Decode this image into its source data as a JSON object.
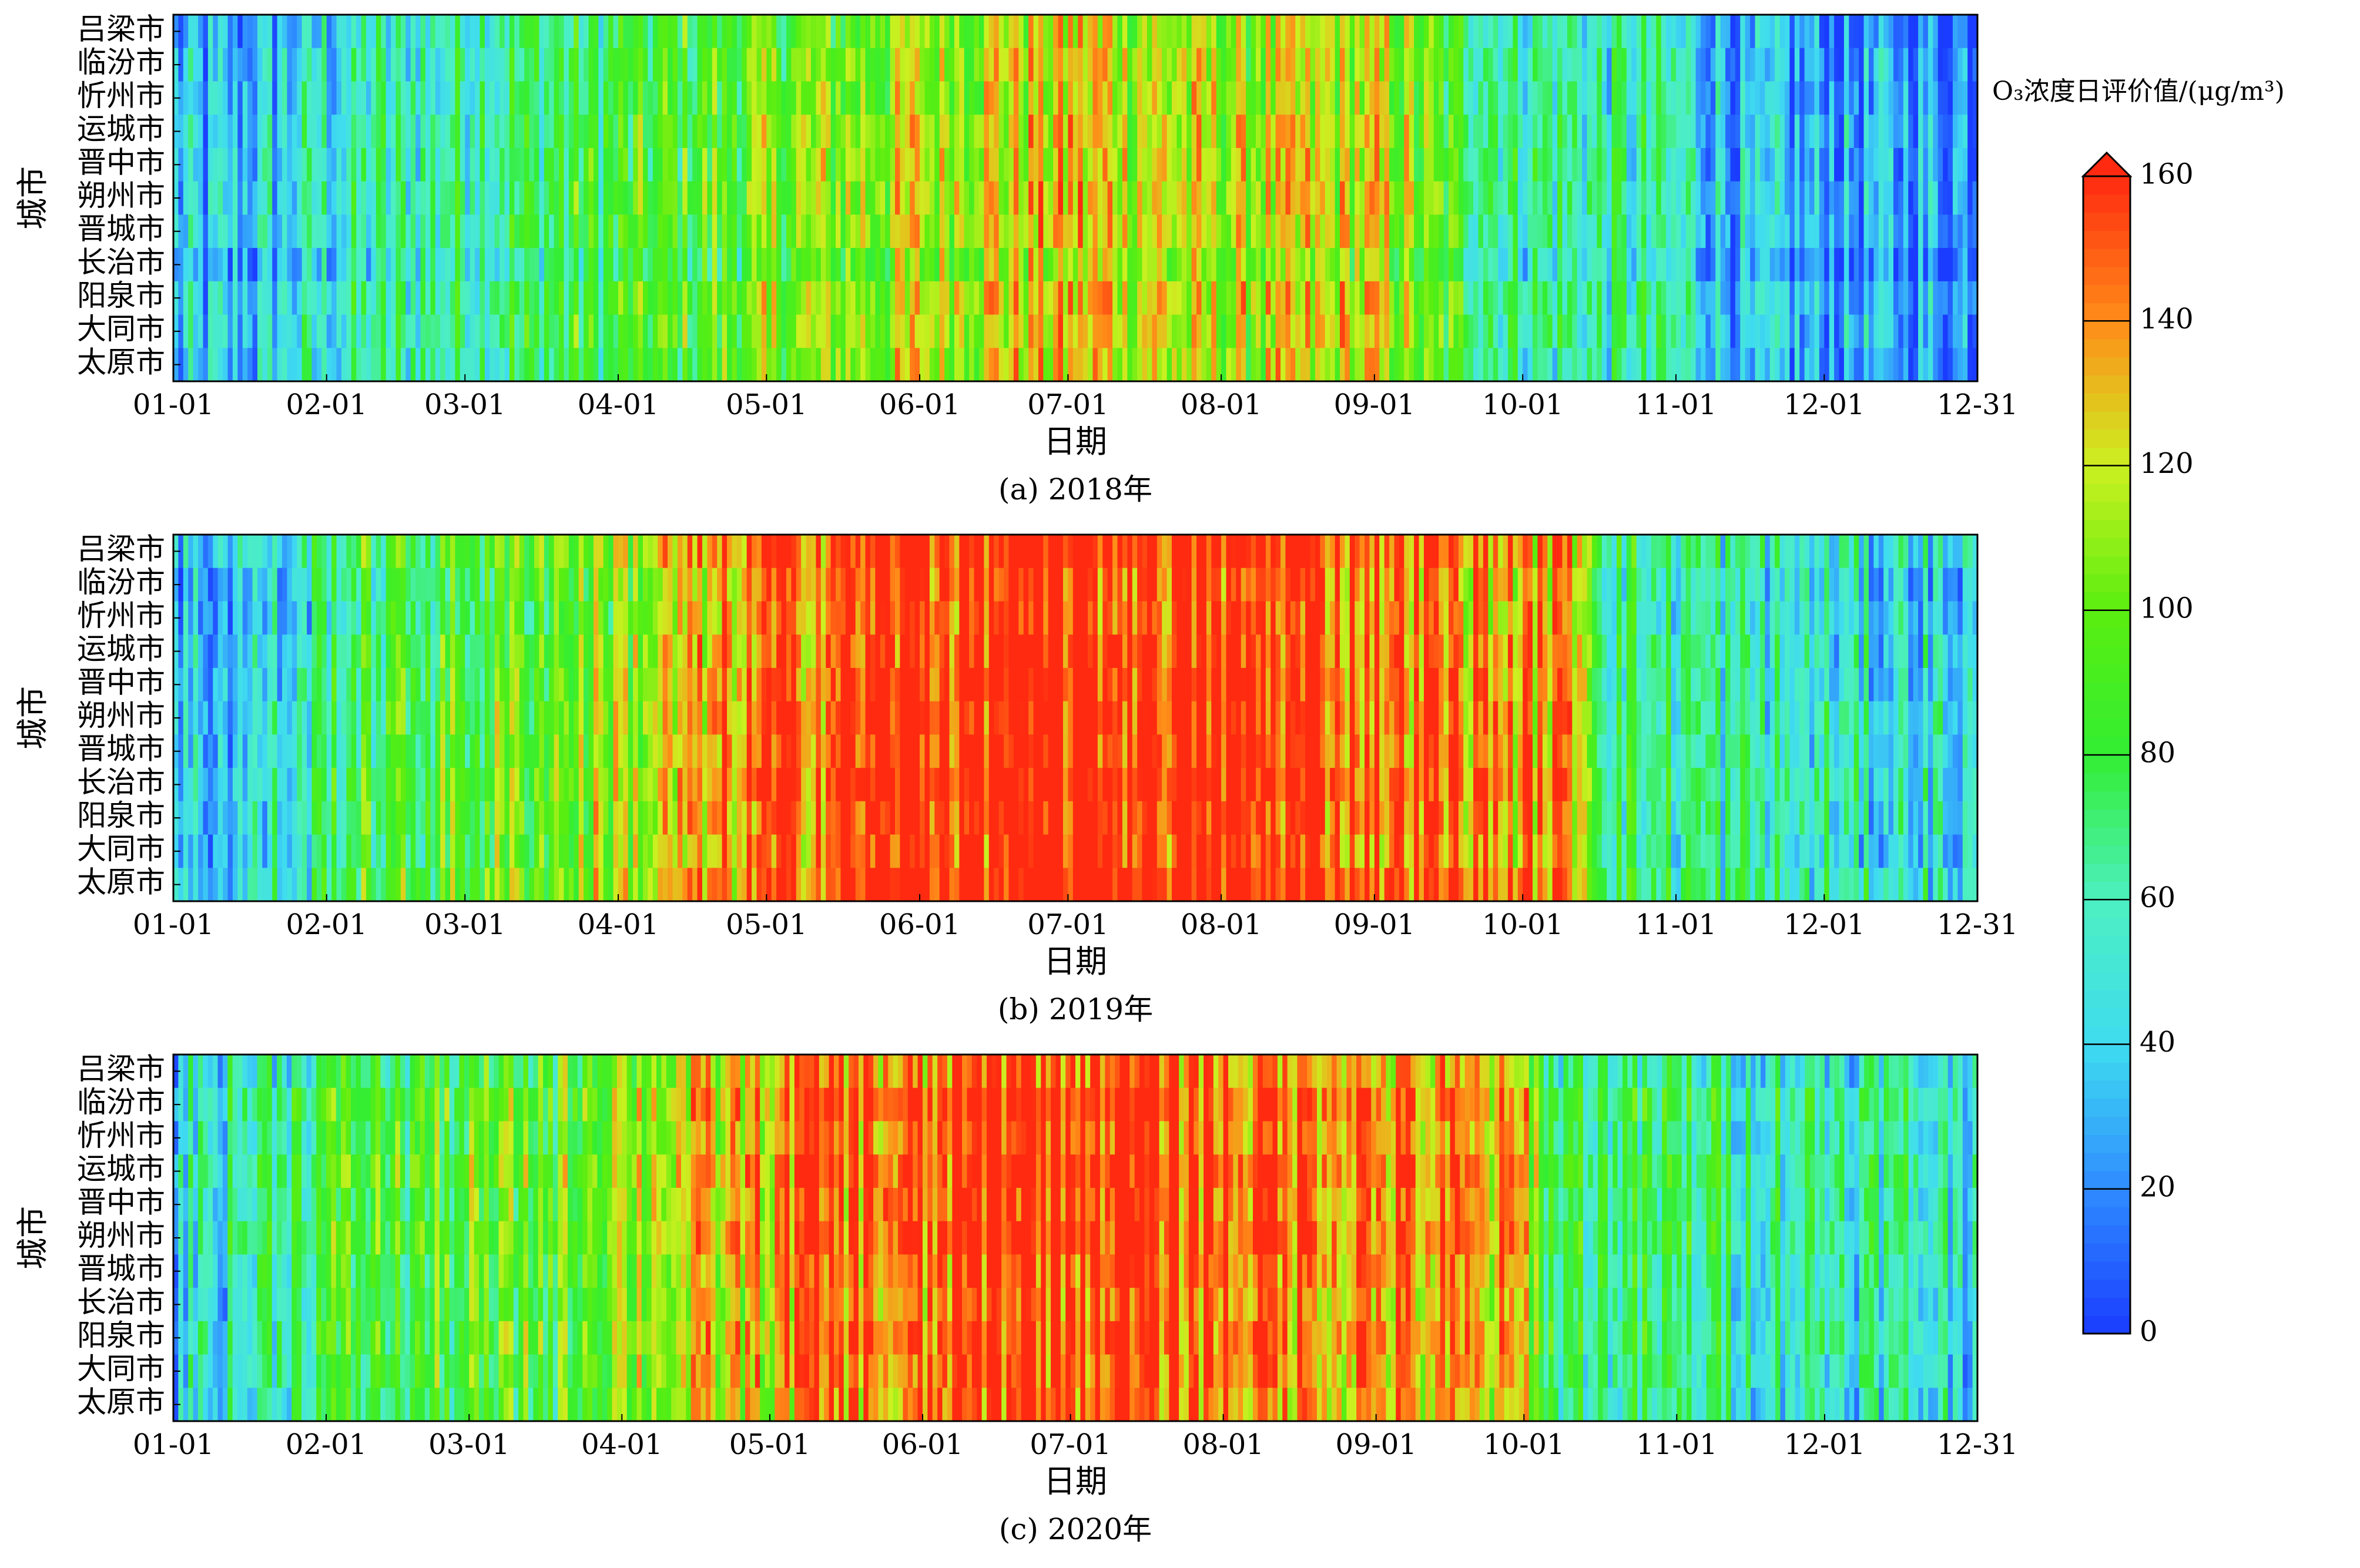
{
  "chart_data": [
    {
      "type": "heatmap",
      "title": "(a)  2018年",
      "year": 2018,
      "xlabel": "日期",
      "ylabel": "城市",
      "rows": [
        "吕梁市",
        "临汾市",
        "忻州市",
        "运城市",
        "晋中市",
        "朔州市",
        "晋城市",
        "长治市",
        "阳泉市",
        "大同市",
        "太原市"
      ],
      "xticks": [
        "01-01",
        "02-01",
        "03-01",
        "04-01",
        "05-01",
        "06-01",
        "07-01",
        "08-01",
        "09-01",
        "10-01",
        "11-01",
        "12-01",
        "12-31"
      ],
      "days": 365,
      "profile": [
        {
          "day": 1,
          "value": 28
        },
        {
          "day": 15,
          "value": 30
        },
        {
          "day": 32,
          "value": 48
        },
        {
          "day": 60,
          "value": 65
        },
        {
          "day": 91,
          "value": 78
        },
        {
          "day": 121,
          "value": 95
        },
        {
          "day": 152,
          "value": 112
        },
        {
          "day": 182,
          "value": 125
        },
        {
          "day": 213,
          "value": 108
        },
        {
          "day": 244,
          "value": 115
        },
        {
          "day": 260,
          "value": 80
        },
        {
          "day": 274,
          "value": 62
        },
        {
          "day": 305,
          "value": 52
        },
        {
          "day": 318,
          "value": 24
        },
        {
          "day": 335,
          "value": 22
        },
        {
          "day": 365,
          "value": 22
        }
      ]
    },
    {
      "type": "heatmap",
      "title": "(b)  2019年",
      "year": 2019,
      "xlabel": "日期",
      "ylabel": "城市",
      "rows": [
        "吕梁市",
        "临汾市",
        "忻州市",
        "运城市",
        "晋中市",
        "朔州市",
        "晋城市",
        "长治市",
        "阳泉市",
        "大同市",
        "太原市"
      ],
      "xticks": [
        "01-01",
        "02-01",
        "03-01",
        "04-01",
        "05-01",
        "06-01",
        "07-01",
        "08-01",
        "09-01",
        "10-01",
        "11-01",
        "12-01",
        "12-31"
      ],
      "days": 365,
      "profile": [
        {
          "day": 1,
          "value": 35
        },
        {
          "day": 25,
          "value": 45
        },
        {
          "day": 32,
          "value": 75
        },
        {
          "day": 60,
          "value": 90
        },
        {
          "day": 91,
          "value": 110
        },
        {
          "day": 110,
          "value": 128
        },
        {
          "day": 121,
          "value": 145
        },
        {
          "day": 152,
          "value": 162
        },
        {
          "day": 182,
          "value": 165
        },
        {
          "day": 213,
          "value": 160
        },
        {
          "day": 244,
          "value": 150
        },
        {
          "day": 265,
          "value": 140
        },
        {
          "day": 285,
          "value": 135
        },
        {
          "day": 290,
          "value": 75
        },
        {
          "day": 305,
          "value": 62
        },
        {
          "day": 335,
          "value": 50
        },
        {
          "day": 365,
          "value": 42
        }
      ]
    },
    {
      "type": "heatmap",
      "title": "(c)  2020年",
      "year": 2020,
      "xlabel": "日期",
      "ylabel": "城市",
      "rows": [
        "吕梁市",
        "临汾市",
        "忻州市",
        "运城市",
        "晋中市",
        "朔州市",
        "晋城市",
        "长治市",
        "阳泉市",
        "大同市",
        "太原市"
      ],
      "xticks": [
        "01-01",
        "02-01",
        "03-01",
        "04-01",
        "05-01",
        "06-01",
        "07-01",
        "08-01",
        "09-01",
        "10-01",
        "11-01",
        "12-01",
        "12-31"
      ],
      "days": 366,
      "profile": [
        {
          "day": 1,
          "value": 45
        },
        {
          "day": 32,
          "value": 82
        },
        {
          "day": 60,
          "value": 88
        },
        {
          "day": 80,
          "value": 95
        },
        {
          "day": 91,
          "value": 110
        },
        {
          "day": 121,
          "value": 130
        },
        {
          "day": 130,
          "value": 150
        },
        {
          "day": 152,
          "value": 140
        },
        {
          "day": 165,
          "value": 160
        },
        {
          "day": 182,
          "value": 162
        },
        {
          "day": 213,
          "value": 150
        },
        {
          "day": 244,
          "value": 140
        },
        {
          "day": 275,
          "value": 125
        },
        {
          "day": 280,
          "value": 75
        },
        {
          "day": 305,
          "value": 68
        },
        {
          "day": 335,
          "value": 62
        },
        {
          "day": 366,
          "value": 52
        }
      ]
    }
  ],
  "colorbar": {
    "label": "O₃浓度日评价值/(μg/m³)",
    "min": 0,
    "max": 160,
    "ticks": [
      "0",
      "20",
      "40",
      "60",
      "80",
      "100",
      "120",
      "140",
      "160"
    ],
    "extend": "max",
    "colors": [
      "#1a3cff",
      "#2f8cff",
      "#3fdcf0",
      "#4cf0c0",
      "#33ee33",
      "#5aee10",
      "#ccf020",
      "#ff8c18",
      "#ff2a10"
    ],
    "over_color": "#ff2a10"
  }
}
